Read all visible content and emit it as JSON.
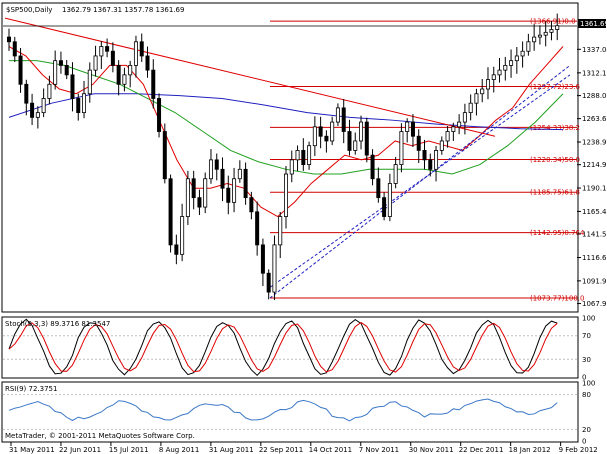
{
  "header": {
    "symbol": "$SP500,Daily",
    "quote": "1362.79 1367.31 1357.78 1361.69"
  },
  "colors": {
    "background": "#ffffff",
    "grid": "#c8c8c8",
    "trendline": "#e00000",
    "fib": "#d00000",
    "ma_short": "#e00000",
    "ma_mid": "#20a020",
    "ma_long": "#2020c0",
    "channel": "#2020c0",
    "stoch_main": "#000000",
    "stoch_signal": "#e00000",
    "rsi": "#3c78c8"
  },
  "price_axis": {
    "labels": [
      "1337.04",
      "1312.10",
      "1288.04",
      "1263.63",
      "1238.90",
      "1214.90",
      "1190.15",
      "1165.42",
      "1141.50",
      "1116.65",
      "1091.90",
      "1067.90"
    ],
    "current_price": "1361.69",
    "current_value": 1361.69,
    "ylim": [
      1060,
      1385
    ]
  },
  "date_axis": [
    "31 May 2011",
    "22 Jun 2011",
    "15 Jul 2011",
    "8 Aug 2011",
    "31 Aug 2011",
    "22 Sep 2011",
    "14 Oct 2011",
    "7 Nov 2011",
    "30 Nov 2011",
    "22 Dec 2011",
    "18 Jan 2012",
    "9 Feb 2012"
  ],
  "fib_levels": [
    {
      "label": "(1366.91)0.0",
      "value": 1366.91
    },
    {
      "label": "(1297.72)23.6",
      "value": 1297.72
    },
    {
      "label": "(1254.33)38.2",
      "value": 1254.33
    },
    {
      "label": "(1220.34)50.0",
      "value": 1220.34
    },
    {
      "label": "(1185.75)61.8",
      "value": 1185.75
    },
    {
      "label": "(1142.95)0.764",
      "value": 1142.95
    },
    {
      "label": "(1073.77)100.0",
      "value": 1073.77
    }
  ],
  "stoch": {
    "label": "Stoch(9,3,3) 89.3716 81.3547",
    "axis": [
      "100",
      "70",
      "30",
      "0"
    ],
    "levels": [
      100,
      70,
      30,
      0
    ]
  },
  "rsi": {
    "label": "RSI(9) 72.3751",
    "axis": [
      "100",
      "80",
      "20",
      "0"
    ],
    "levels": [
      100,
      80,
      20,
      0
    ]
  },
  "copyright": "MetaTrader, © 2001-2011 MetaQuotes Software Corp.",
  "chart_data": {
    "type": "candlestick",
    "title": "$SP500,Daily",
    "x_categories": [
      "31 May 2011",
      "22 Jun 2011",
      "15 Jul 2011",
      "8 Aug 2011",
      "31 Aug 2011",
      "22 Sep 2011",
      "14 Oct 2011",
      "7 Nov 2011",
      "30 Nov 2011",
      "22 Dec 2011",
      "18 Jan 2012",
      "9 Feb 2012"
    ],
    "close_path": [
      1345,
      1330,
      1300,
      1280,
      1265,
      1270,
      1285,
      1300,
      1325,
      1320,
      1310,
      1285,
      1270,
      1290,
      1315,
      1330,
      1340,
      1335,
      1320,
      1300,
      1310,
      1320,
      1345,
      1330,
      1315,
      1285,
      1250,
      1200,
      1130,
      1120,
      1160,
      1200,
      1180,
      1170,
      1200,
      1220,
      1210,
      1190,
      1175,
      1200,
      1210,
      1180,
      1165,
      1130,
      1100,
      1080,
      1130,
      1160,
      1205,
      1220,
      1230,
      1215,
      1235,
      1255,
      1245,
      1240,
      1260,
      1275,
      1250,
      1230,
      1240,
      1260,
      1225,
      1200,
      1180,
      1160,
      1195,
      1215,
      1250,
      1260,
      1245,
      1230,
      1220,
      1210,
      1230,
      1240,
      1250,
      1255,
      1260,
      1270,
      1280,
      1290,
      1295,
      1305,
      1310,
      1315,
      1320,
      1325,
      1330,
      1335,
      1345,
      1350,
      1352,
      1355,
      1358,
      1362
    ],
    "ma_short": [
      1340,
      1330,
      1310,
      1295,
      1290,
      1300,
      1320,
      1320,
      1300,
      1260,
      1220,
      1190,
      1190,
      1195,
      1190,
      1170,
      1160,
      1175,
      1195,
      1210,
      1225,
      1220,
      1225,
      1240,
      1235,
      1240,
      1235,
      1230,
      1245,
      1262,
      1275,
      1300,
      1320,
      1340
    ],
    "ma_mid": [
      1325,
      1325,
      1320,
      1310,
      1300,
      1285,
      1270,
      1250,
      1230,
      1218,
      1210,
      1205,
      1205,
      1210,
      1210,
      1210,
      1205,
      1215,
      1235,
      1260,
      1290
    ],
    "ma_long": [
      1265,
      1280,
      1290,
      1290,
      1288,
      1285,
      1278,
      1270,
      1265,
      1262,
      1258,
      1255,
      1253,
      1252
    ],
    "fib_levels": [
      1366.91,
      1297.72,
      1254.33,
      1220.34,
      1185.75,
      1142.95,
      1073.77
    ],
    "stochastic": {
      "main": 89.3716,
      "signal": 81.3547
    },
    "rsi": 72.3751,
    "ylim": [
      1060,
      1385
    ]
  }
}
